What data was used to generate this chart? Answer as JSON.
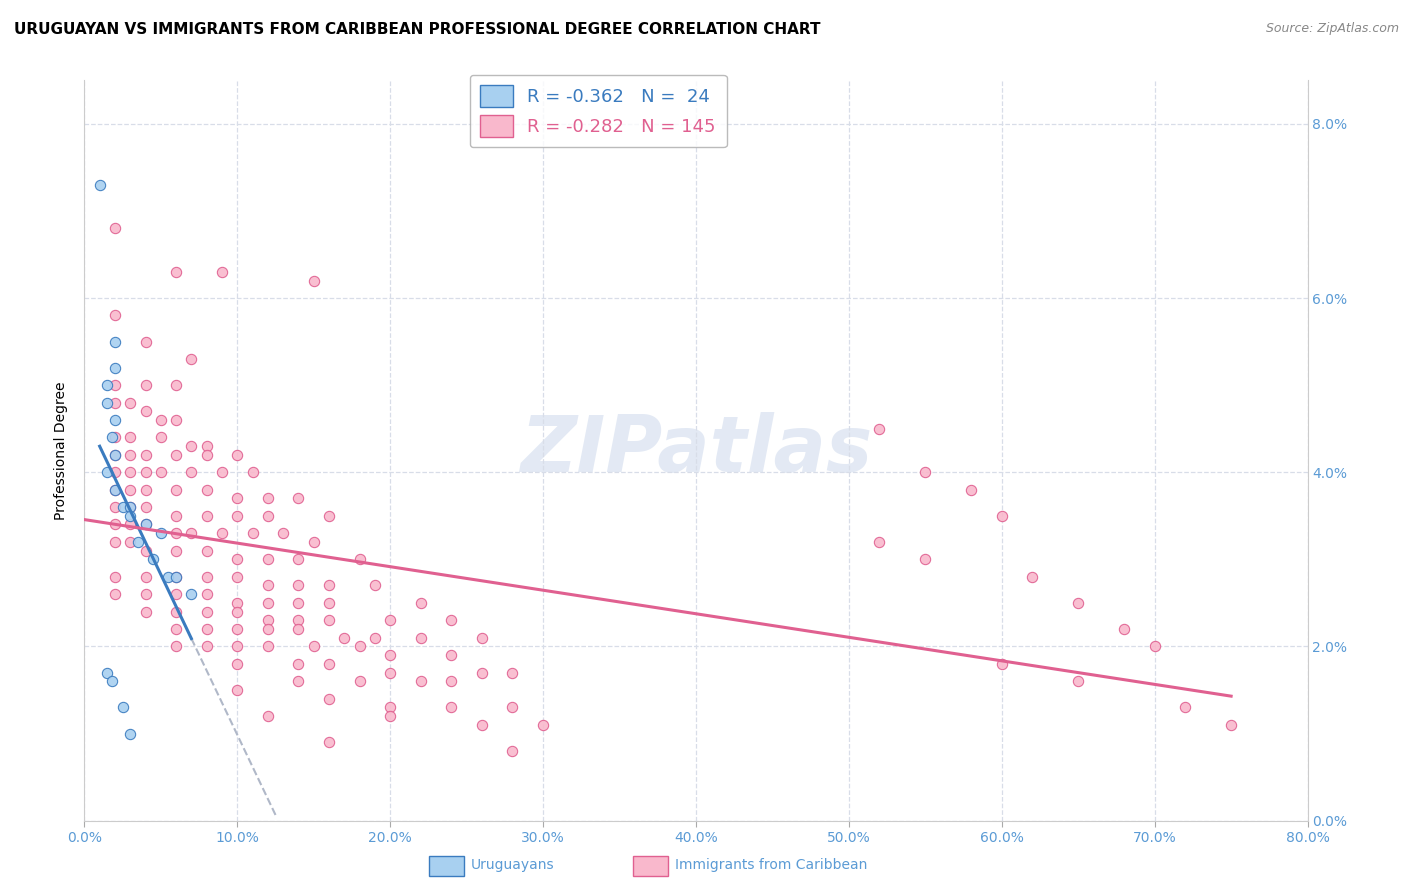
{
  "title": "URUGUAYAN VS IMMIGRANTS FROM CARIBBEAN PROFESSIONAL DEGREE CORRELATION CHART",
  "source": "Source: ZipAtlas.com",
  "ylabel": "Professional Degree",
  "watermark": "ZIPatlas",
  "legend_blue_r": "-0.362",
  "legend_blue_n": "24",
  "legend_pink_r": "-0.282",
  "legend_pink_n": "145",
  "blue_color": "#a8d0f0",
  "pink_color": "#f9b8cc",
  "blue_line_color": "#3a7bbf",
  "pink_line_color": "#e06090",
  "dashed_line_color": "#b0b8c8",
  "blue_scatter": [
    [
      0.01,
      0.073
    ],
    [
      0.02,
      0.055
    ],
    [
      0.02,
      0.052
    ],
    [
      0.015,
      0.05
    ],
    [
      0.015,
      0.048
    ],
    [
      0.02,
      0.046
    ],
    [
      0.018,
      0.044
    ],
    [
      0.02,
      0.042
    ],
    [
      0.015,
      0.04
    ],
    [
      0.02,
      0.038
    ],
    [
      0.025,
      0.036
    ],
    [
      0.03,
      0.036
    ],
    [
      0.03,
      0.035
    ],
    [
      0.04,
      0.034
    ],
    [
      0.05,
      0.033
    ],
    [
      0.035,
      0.032
    ],
    [
      0.045,
      0.03
    ],
    [
      0.055,
      0.028
    ],
    [
      0.06,
      0.028
    ],
    [
      0.07,
      0.026
    ],
    [
      0.015,
      0.017
    ],
    [
      0.018,
      0.016
    ],
    [
      0.025,
      0.013
    ],
    [
      0.03,
      0.01
    ]
  ],
  "pink_scatter": [
    [
      0.02,
      0.068
    ],
    [
      0.06,
      0.063
    ],
    [
      0.09,
      0.063
    ],
    [
      0.15,
      0.062
    ],
    [
      0.02,
      0.058
    ],
    [
      0.04,
      0.055
    ],
    [
      0.07,
      0.053
    ],
    [
      0.02,
      0.05
    ],
    [
      0.04,
      0.05
    ],
    [
      0.06,
      0.05
    ],
    [
      0.02,
      0.048
    ],
    [
      0.03,
      0.048
    ],
    [
      0.04,
      0.047
    ],
    [
      0.05,
      0.046
    ],
    [
      0.06,
      0.046
    ],
    [
      0.02,
      0.044
    ],
    [
      0.03,
      0.044
    ],
    [
      0.05,
      0.044
    ],
    [
      0.07,
      0.043
    ],
    [
      0.08,
      0.043
    ],
    [
      0.02,
      0.042
    ],
    [
      0.03,
      0.042
    ],
    [
      0.04,
      0.042
    ],
    [
      0.06,
      0.042
    ],
    [
      0.08,
      0.042
    ],
    [
      0.1,
      0.042
    ],
    [
      0.02,
      0.04
    ],
    [
      0.03,
      0.04
    ],
    [
      0.04,
      0.04
    ],
    [
      0.05,
      0.04
    ],
    [
      0.07,
      0.04
    ],
    [
      0.09,
      0.04
    ],
    [
      0.11,
      0.04
    ],
    [
      0.02,
      0.038
    ],
    [
      0.03,
      0.038
    ],
    [
      0.04,
      0.038
    ],
    [
      0.06,
      0.038
    ],
    [
      0.08,
      0.038
    ],
    [
      0.1,
      0.037
    ],
    [
      0.12,
      0.037
    ],
    [
      0.14,
      0.037
    ],
    [
      0.02,
      0.036
    ],
    [
      0.03,
      0.036
    ],
    [
      0.04,
      0.036
    ],
    [
      0.06,
      0.035
    ],
    [
      0.08,
      0.035
    ],
    [
      0.1,
      0.035
    ],
    [
      0.12,
      0.035
    ],
    [
      0.16,
      0.035
    ],
    [
      0.02,
      0.034
    ],
    [
      0.03,
      0.034
    ],
    [
      0.04,
      0.034
    ],
    [
      0.06,
      0.033
    ],
    [
      0.07,
      0.033
    ],
    [
      0.09,
      0.033
    ],
    [
      0.11,
      0.033
    ],
    [
      0.13,
      0.033
    ],
    [
      0.15,
      0.032
    ],
    [
      0.02,
      0.032
    ],
    [
      0.03,
      0.032
    ],
    [
      0.04,
      0.031
    ],
    [
      0.06,
      0.031
    ],
    [
      0.08,
      0.031
    ],
    [
      0.1,
      0.03
    ],
    [
      0.12,
      0.03
    ],
    [
      0.14,
      0.03
    ],
    [
      0.18,
      0.03
    ],
    [
      0.02,
      0.028
    ],
    [
      0.04,
      0.028
    ],
    [
      0.06,
      0.028
    ],
    [
      0.08,
      0.028
    ],
    [
      0.1,
      0.028
    ],
    [
      0.12,
      0.027
    ],
    [
      0.14,
      0.027
    ],
    [
      0.16,
      0.027
    ],
    [
      0.19,
      0.027
    ],
    [
      0.02,
      0.026
    ],
    [
      0.04,
      0.026
    ],
    [
      0.06,
      0.026
    ],
    [
      0.08,
      0.026
    ],
    [
      0.1,
      0.025
    ],
    [
      0.12,
      0.025
    ],
    [
      0.14,
      0.025
    ],
    [
      0.16,
      0.025
    ],
    [
      0.22,
      0.025
    ],
    [
      0.04,
      0.024
    ],
    [
      0.06,
      0.024
    ],
    [
      0.08,
      0.024
    ],
    [
      0.1,
      0.024
    ],
    [
      0.12,
      0.023
    ],
    [
      0.14,
      0.023
    ],
    [
      0.16,
      0.023
    ],
    [
      0.2,
      0.023
    ],
    [
      0.24,
      0.023
    ],
    [
      0.06,
      0.022
    ],
    [
      0.08,
      0.022
    ],
    [
      0.1,
      0.022
    ],
    [
      0.12,
      0.022
    ],
    [
      0.14,
      0.022
    ],
    [
      0.17,
      0.021
    ],
    [
      0.19,
      0.021
    ],
    [
      0.22,
      0.021
    ],
    [
      0.26,
      0.021
    ],
    [
      0.06,
      0.02
    ],
    [
      0.08,
      0.02
    ],
    [
      0.1,
      0.02
    ],
    [
      0.12,
      0.02
    ],
    [
      0.15,
      0.02
    ],
    [
      0.18,
      0.02
    ],
    [
      0.2,
      0.019
    ],
    [
      0.24,
      0.019
    ],
    [
      0.1,
      0.018
    ],
    [
      0.14,
      0.018
    ],
    [
      0.16,
      0.018
    ],
    [
      0.2,
      0.017
    ],
    [
      0.26,
      0.017
    ],
    [
      0.28,
      0.017
    ],
    [
      0.14,
      0.016
    ],
    [
      0.18,
      0.016
    ],
    [
      0.22,
      0.016
    ],
    [
      0.24,
      0.016
    ],
    [
      0.1,
      0.015
    ],
    [
      0.16,
      0.014
    ],
    [
      0.2,
      0.013
    ],
    [
      0.24,
      0.013
    ],
    [
      0.28,
      0.013
    ],
    [
      0.12,
      0.012
    ],
    [
      0.2,
      0.012
    ],
    [
      0.26,
      0.011
    ],
    [
      0.3,
      0.011
    ],
    [
      0.16,
      0.009
    ],
    [
      0.28,
      0.008
    ],
    [
      0.52,
      0.045
    ],
    [
      0.55,
      0.04
    ],
    [
      0.58,
      0.038
    ],
    [
      0.6,
      0.035
    ],
    [
      0.52,
      0.032
    ],
    [
      0.55,
      0.03
    ],
    [
      0.62,
      0.028
    ],
    [
      0.65,
      0.025
    ],
    [
      0.68,
      0.022
    ],
    [
      0.7,
      0.02
    ],
    [
      0.6,
      0.018
    ],
    [
      0.65,
      0.016
    ],
    [
      0.72,
      0.013
    ],
    [
      0.75,
      0.011
    ]
  ],
  "xlim": [
    0.0,
    0.8
  ],
  "ylim": [
    0.0,
    0.085
  ],
  "xticks": [
    0.0,
    0.1,
    0.2,
    0.3,
    0.4,
    0.5,
    0.6,
    0.7,
    0.8
  ],
  "yticks": [
    0.0,
    0.02,
    0.04,
    0.06,
    0.08
  ],
  "grid_color": "#d8dde8",
  "background_color": "#ffffff",
  "title_fontsize": 11,
  "tick_label_color": "#5b9bd5"
}
